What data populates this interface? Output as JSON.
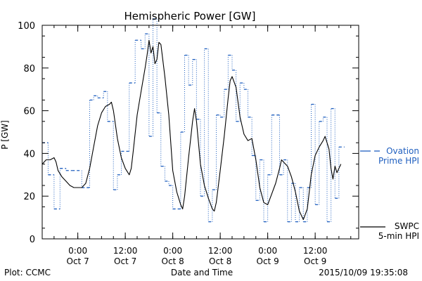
{
  "chart_data": {
    "type": "line",
    "title": "Hemispheric Power [GW]",
    "xlabel": "Date and Time",
    "ylabel": "P [GW]",
    "ylim": [
      0,
      100
    ],
    "xlim": [
      "2015-10-06 15:00",
      "2015-10-09 23:00"
    ],
    "yticks": [
      0,
      20,
      40,
      60,
      80,
      100
    ],
    "xticks": [
      {
        "x": "2015-10-07 00:00",
        "time": "0:00",
        "day": "Oct 7"
      },
      {
        "x": "2015-10-07 12:00",
        "time": "12:00",
        "day": "Oct 7"
      },
      {
        "x": "2015-10-08 00:00",
        "time": "0:00",
        "day": "Oct 8"
      },
      {
        "x": "2015-10-08 12:00",
        "time": "12:00",
        "day": "Oct 8"
      },
      {
        "x": "2015-10-09 00:00",
        "time": "0:00",
        "day": "Oct 9"
      },
      {
        "x": "2015-10-09 12:00",
        "time": "12:00",
        "day": "Oct 9"
      }
    ],
    "grid": false,
    "legend_position": "right",
    "series": [
      {
        "name": "Ovation Prime HPI",
        "legend_lines": [
          "Ovation",
          "Prime HPI"
        ],
        "style": "dashed-step",
        "color": "#1f5fbf",
        "points": [
          [
            "2015-10-06 15:00",
            45
          ],
          [
            "2015-10-06 16:30",
            30
          ],
          [
            "2015-10-06 18:00",
            14
          ],
          [
            "2015-10-06 19:30",
            33
          ],
          [
            "2015-10-06 21:00",
            32
          ],
          [
            "2015-10-06 22:30",
            32
          ],
          [
            "2015-10-07 01:00",
            24
          ],
          [
            "2015-10-07 03:00",
            65
          ],
          [
            "2015-10-07 04:00",
            67
          ],
          [
            "2015-10-07 05:00",
            66
          ],
          [
            "2015-10-07 06:30",
            69
          ],
          [
            "2015-10-07 07:30",
            55
          ],
          [
            "2015-10-07 09:00",
            23
          ],
          [
            "2015-10-07 10:00",
            30
          ],
          [
            "2015-10-07 11:00",
            41
          ],
          [
            "2015-10-07 13:00",
            73
          ],
          [
            "2015-10-07 14:30",
            93
          ],
          [
            "2015-10-07 16:00",
            89
          ],
          [
            "2015-10-07 17:00",
            96
          ],
          [
            "2015-10-07 18:00",
            48
          ],
          [
            "2015-10-07 19:00",
            103
          ],
          [
            "2015-10-07 20:00",
            59
          ],
          [
            "2015-10-07 21:00",
            34
          ],
          [
            "2015-10-07 22:00",
            27
          ],
          [
            "2015-10-07 23:00",
            25
          ],
          [
            "2015-10-08 00:00",
            14
          ],
          [
            "2015-10-08 02:00",
            50
          ],
          [
            "2015-10-08 03:00",
            86
          ],
          [
            "2015-10-08 04:00",
            72
          ],
          [
            "2015-10-08 05:00",
            84
          ],
          [
            "2015-10-08 06:00",
            56
          ],
          [
            "2015-10-08 07:00",
            20
          ],
          [
            "2015-10-08 08:00",
            89
          ],
          [
            "2015-10-08 09:00",
            8
          ],
          [
            "2015-10-08 10:00",
            23
          ],
          [
            "2015-10-08 11:00",
            58
          ],
          [
            "2015-10-08 12:00",
            57
          ],
          [
            "2015-10-08 13:00",
            70
          ],
          [
            "2015-10-08 14:00",
            86
          ],
          [
            "2015-10-08 15:00",
            79
          ],
          [
            "2015-10-08 16:00",
            55
          ],
          [
            "2015-10-08 17:00",
            73
          ],
          [
            "2015-10-08 18:00",
            70
          ],
          [
            "2015-10-08 19:00",
            57
          ],
          [
            "2015-10-08 20:00",
            39
          ],
          [
            "2015-10-08 21:00",
            18
          ],
          [
            "2015-10-08 22:00",
            37
          ],
          [
            "2015-10-08 23:00",
            8
          ],
          [
            "2015-10-09 00:00",
            30
          ],
          [
            "2015-10-09 01:00",
            58
          ],
          [
            "2015-10-09 03:00",
            30
          ],
          [
            "2015-10-09 04:00",
            37
          ],
          [
            "2015-10-09 05:00",
            8
          ],
          [
            "2015-10-09 06:00",
            26
          ],
          [
            "2015-10-09 07:00",
            8
          ],
          [
            "2015-10-09 08:00",
            24
          ],
          [
            "2015-10-09 09:00",
            8
          ],
          [
            "2015-10-09 10:00",
            24
          ],
          [
            "2015-10-09 11:00",
            63
          ],
          [
            "2015-10-09 12:00",
            16
          ],
          [
            "2015-10-09 13:00",
            55
          ],
          [
            "2015-10-09 14:00",
            57
          ],
          [
            "2015-10-09 15:00",
            8
          ],
          [
            "2015-10-09 16:00",
            61
          ],
          [
            "2015-10-09 17:00",
            19
          ],
          [
            "2015-10-09 18:00",
            43
          ]
        ]
      },
      {
        "name": "SWPC 5-min HPI",
        "legend_lines": [
          "SWPC",
          "5-min HPI"
        ],
        "style": "solid",
        "color": "#000000",
        "points": [
          [
            "2015-10-06 15:00",
            35
          ],
          [
            "2015-10-06 16:00",
            37
          ],
          [
            "2015-10-06 17:00",
            37
          ],
          [
            "2015-10-06 18:00",
            38
          ],
          [
            "2015-10-06 18:30",
            36
          ],
          [
            "2015-10-06 19:00",
            32
          ],
          [
            "2015-10-06 20:00",
            29
          ],
          [
            "2015-10-06 21:00",
            27
          ],
          [
            "2015-10-06 22:00",
            25
          ],
          [
            "2015-10-06 23:00",
            24
          ],
          [
            "2015-10-07 00:00",
            24
          ],
          [
            "2015-10-07 01:00",
            24
          ],
          [
            "2015-10-07 01:30",
            25
          ],
          [
            "2015-10-07 02:00",
            26
          ],
          [
            "2015-10-07 03:00",
            33
          ],
          [
            "2015-10-07 04:00",
            43
          ],
          [
            "2015-10-07 05:00",
            53
          ],
          [
            "2015-10-07 06:00",
            59
          ],
          [
            "2015-10-07 07:00",
            62
          ],
          [
            "2015-10-07 08:00",
            63
          ],
          [
            "2015-10-07 08:30",
            64
          ],
          [
            "2015-10-07 09:00",
            60
          ],
          [
            "2015-10-07 10:00",
            47
          ],
          [
            "2015-10-07 11:00",
            38
          ],
          [
            "2015-10-07 12:00",
            33
          ],
          [
            "2015-10-07 13:00",
            30
          ],
          [
            "2015-10-07 13:30",
            33
          ],
          [
            "2015-10-07 14:00",
            41
          ],
          [
            "2015-10-07 15:00",
            58
          ],
          [
            "2015-10-07 16:00",
            69
          ],
          [
            "2015-10-07 17:00",
            80
          ],
          [
            "2015-10-07 17:30",
            86
          ],
          [
            "2015-10-07 18:00",
            93
          ],
          [
            "2015-10-07 18:30",
            87
          ],
          [
            "2015-10-07 19:00",
            90
          ],
          [
            "2015-10-07 19:30",
            82
          ],
          [
            "2015-10-07 20:00",
            84
          ],
          [
            "2015-10-07 20:30",
            92
          ],
          [
            "2015-10-07 21:00",
            91
          ],
          [
            "2015-10-07 22:00",
            76
          ],
          [
            "2015-10-07 23:00",
            58
          ],
          [
            "2015-10-08 00:00",
            32
          ],
          [
            "2015-10-08 01:00",
            22
          ],
          [
            "2015-10-08 02:00",
            16
          ],
          [
            "2015-10-08 02:30",
            14
          ],
          [
            "2015-10-08 03:00",
            20
          ],
          [
            "2015-10-08 04:00",
            38
          ],
          [
            "2015-10-08 05:00",
            55
          ],
          [
            "2015-10-08 05:30",
            61
          ],
          [
            "2015-10-08 06:00",
            55
          ],
          [
            "2015-10-08 07:00",
            35
          ],
          [
            "2015-10-08 08:00",
            25
          ],
          [
            "2015-10-08 09:00",
            19
          ],
          [
            "2015-10-08 10:00",
            14
          ],
          [
            "2015-10-08 10:30",
            13
          ],
          [
            "2015-10-08 11:00",
            17
          ],
          [
            "2015-10-08 12:00",
            32
          ],
          [
            "2015-10-08 13:00",
            48
          ],
          [
            "2015-10-08 14:00",
            66
          ],
          [
            "2015-10-08 14:30",
            74
          ],
          [
            "2015-10-08 15:00",
            76
          ],
          [
            "2015-10-08 16:00",
            71
          ],
          [
            "2015-10-08 17:00",
            57
          ],
          [
            "2015-10-08 18:00",
            49
          ],
          [
            "2015-10-08 19:00",
            46
          ],
          [
            "2015-10-08 20:00",
            47
          ],
          [
            "2015-10-08 21:00",
            37
          ],
          [
            "2015-10-08 22:00",
            24
          ],
          [
            "2015-10-08 23:00",
            17
          ],
          [
            "2015-10-09 00:00",
            16
          ],
          [
            "2015-10-09 01:00",
            21
          ],
          [
            "2015-10-09 02:00",
            26
          ],
          [
            "2015-10-09 03:00",
            33
          ],
          [
            "2015-10-09 03:30",
            37
          ],
          [
            "2015-10-09 04:00",
            36
          ],
          [
            "2015-10-09 05:00",
            34
          ],
          [
            "2015-10-09 06:00",
            29
          ],
          [
            "2015-10-09 07:00",
            22
          ],
          [
            "2015-10-09 08:00",
            13
          ],
          [
            "2015-10-09 09:00",
            9
          ],
          [
            "2015-10-09 10:00",
            14
          ],
          [
            "2015-10-09 11:00",
            30
          ],
          [
            "2015-10-09 12:00",
            39
          ],
          [
            "2015-10-09 13:00",
            43
          ],
          [
            "2015-10-09 14:00",
            46
          ],
          [
            "2015-10-09 14:30",
            48
          ],
          [
            "2015-10-09 15:00",
            45
          ],
          [
            "2015-10-09 15:30",
            42
          ],
          [
            "2015-10-09 16:00",
            33
          ],
          [
            "2015-10-09 16:30",
            28
          ],
          [
            "2015-10-09 17:00",
            34
          ],
          [
            "2015-10-09 17:30",
            31
          ],
          [
            "2015-10-09 18:00",
            33
          ],
          [
            "2015-10-09 18:30",
            35
          ]
        ]
      }
    ]
  },
  "footer": {
    "left": "Plot: CCMC",
    "right": "2015/10/09 19:35:08"
  }
}
